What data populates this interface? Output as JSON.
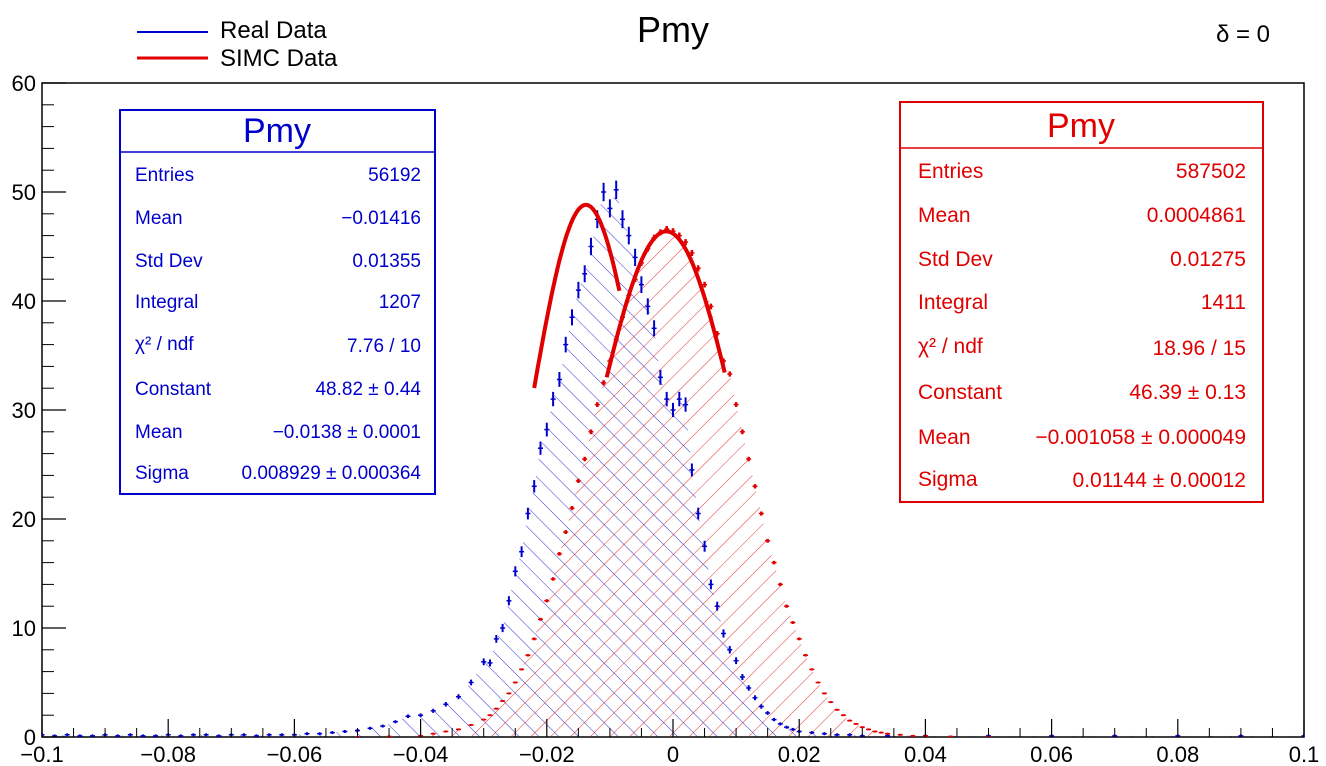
{
  "chart_data": {
    "type": "histogram",
    "title": "Pmy",
    "corner_label": "δ = 0",
    "xlim": [
      -0.1,
      0.1
    ],
    "ylim": [
      0,
      60
    ],
    "x_ticks": [
      "−0.1",
      "−0.08",
      "−0.06",
      "−0.04",
      "−0.02",
      "0",
      "0.02",
      "0.04",
      "0.06",
      "0.08",
      "0.1"
    ],
    "y_ticks": [
      "0",
      "10",
      "20",
      "30",
      "40",
      "50",
      "60"
    ],
    "x_tick_values": [
      -0.1,
      -0.08,
      -0.06,
      -0.04,
      -0.02,
      0,
      0.02,
      0.04,
      0.06,
      0.08,
      0.1
    ],
    "y_tick_values": [
      0,
      10,
      20,
      30,
      40,
      50,
      60
    ],
    "legend": [
      {
        "label": "Real Data",
        "color": "#0000cc"
      },
      {
        "label": "SIMC Data",
        "color": "#e00000"
      }
    ],
    "series": [
      {
        "name": "Real Data",
        "color": "#0000cc",
        "fit": {
          "constant": 48.82,
          "mean": -0.0138,
          "sigma": 0.008929,
          "range": [
            -0.022,
            -0.0085
          ]
        },
        "stats": {
          "title": "Pmy",
          "rows": [
            {
              "label": "Entries",
              "value": "56192"
            },
            {
              "label": "Mean",
              "value": "−0.01416"
            },
            {
              "label": "Std Dev",
              "value": "0.01355"
            },
            {
              "label": "Integral",
              "value": "1207"
            },
            {
              "label": "χ² / ndf",
              "value": "7.76 / 10"
            },
            {
              "label": "Constant",
              "value": "48.82 ± 0.44"
            },
            {
              "label": "Mean",
              "value": "−0.0138 ± 0.0001"
            },
            {
              "label": "Sigma",
              "value": "0.008929 ± 0.000364"
            }
          ]
        },
        "points": [
          [
            -0.1,
            0.2
          ],
          [
            -0.098,
            0.1
          ],
          [
            -0.096,
            0.2
          ],
          [
            -0.094,
            0.1
          ],
          [
            -0.092,
            0.1
          ],
          [
            -0.09,
            0.2
          ],
          [
            -0.088,
            0.1
          ],
          [
            -0.086,
            0.2
          ],
          [
            -0.084,
            0.1
          ],
          [
            -0.082,
            0.1
          ],
          [
            -0.08,
            0.2
          ],
          [
            -0.078,
            0.1
          ],
          [
            -0.076,
            0.2
          ],
          [
            -0.074,
            0.2
          ],
          [
            -0.072,
            0.1
          ],
          [
            -0.07,
            0.2
          ],
          [
            -0.068,
            0.2
          ],
          [
            -0.066,
            0.1
          ],
          [
            -0.064,
            0.2
          ],
          [
            -0.062,
            0.2
          ],
          [
            -0.06,
            0.2
          ],
          [
            -0.058,
            0.3
          ],
          [
            -0.056,
            0.3
          ],
          [
            -0.054,
            0.4
          ],
          [
            -0.052,
            0.5
          ],
          [
            -0.05,
            0.6
          ],
          [
            -0.048,
            0.8
          ],
          [
            -0.046,
            1.0
          ],
          [
            -0.044,
            1.4
          ],
          [
            -0.042,
            1.9
          ],
          [
            -0.04,
            2.0
          ],
          [
            -0.038,
            2.4
          ],
          [
            -0.036,
            3.0
          ],
          [
            -0.034,
            3.7
          ],
          [
            -0.032,
            5.0
          ],
          [
            -0.03,
            6.9
          ],
          [
            -0.029,
            6.8
          ],
          [
            -0.028,
            9.0
          ],
          [
            -0.027,
            10.0
          ],
          [
            -0.026,
            12.5
          ],
          [
            -0.025,
            15.2
          ],
          [
            -0.024,
            17.0
          ],
          [
            -0.023,
            20.5
          ],
          [
            -0.022,
            23.0
          ],
          [
            -0.021,
            26.5
          ],
          [
            -0.02,
            28.2
          ],
          [
            -0.019,
            31.0
          ],
          [
            -0.018,
            32.8
          ],
          [
            -0.017,
            36.0
          ],
          [
            -0.016,
            38.5
          ],
          [
            -0.015,
            41.0
          ],
          [
            -0.014,
            42.5
          ],
          [
            -0.013,
            45.0
          ],
          [
            -0.012,
            47.5
          ],
          [
            -0.011,
            50.0
          ],
          [
            -0.01,
            48.5
          ],
          [
            -0.009,
            50.2
          ],
          [
            -0.008,
            47.5
          ],
          [
            -0.007,
            46.0
          ],
          [
            -0.006,
            44.0
          ],
          [
            -0.005,
            41.5
          ],
          [
            -0.004,
            39.5
          ],
          [
            -0.003,
            37.5
          ],
          [
            -0.002,
            33.0
          ],
          [
            -0.001,
            31.0
          ],
          [
            0.0,
            30.0
          ],
          [
            0.001,
            31.0
          ],
          [
            0.002,
            30.5
          ],
          [
            0.003,
            24.5
          ],
          [
            0.004,
            20.5
          ],
          [
            0.005,
            17.5
          ],
          [
            0.006,
            14.0
          ],
          [
            0.007,
            12.0
          ],
          [
            0.008,
            9.5
          ],
          [
            0.009,
            8.0
          ],
          [
            0.01,
            7.0
          ],
          [
            0.011,
            5.5
          ],
          [
            0.012,
            4.5
          ],
          [
            0.013,
            3.6
          ],
          [
            0.014,
            2.8
          ],
          [
            0.015,
            2.2
          ],
          [
            0.016,
            1.6
          ],
          [
            0.017,
            1.2
          ],
          [
            0.018,
            0.9
          ],
          [
            0.019,
            0.7
          ],
          [
            0.02,
            0.5
          ],
          [
            0.022,
            0.4
          ],
          [
            0.024,
            0.3
          ],
          [
            0.026,
            0.2
          ],
          [
            0.028,
            0.2
          ],
          [
            0.03,
            0.1
          ],
          [
            0.034,
            0.1
          ],
          [
            0.04,
            0.1
          ],
          [
            0.05,
            0.1
          ],
          [
            0.06,
            0.1
          ],
          [
            0.07,
            0.1
          ],
          [
            0.08,
            0.1
          ],
          [
            0.09,
            0.1
          ],
          [
            0.1,
            0.1
          ]
        ]
      },
      {
        "name": "SIMC Data",
        "color": "#e00000",
        "fit": {
          "constant": 46.39,
          "mean": -0.001058,
          "sigma": 0.01144,
          "range": [
            -0.0105,
            0.0082
          ]
        },
        "stats": {
          "title": "Pmy",
          "rows": [
            {
              "label": "Entries",
              "value": "587502"
            },
            {
              "label": "Mean",
              "value": "0.0004861"
            },
            {
              "label": "Std Dev",
              "value": "0.01275"
            },
            {
              "label": "Integral",
              "value": "1411"
            },
            {
              "label": "χ² / ndf",
              "value": "18.96 / 15"
            },
            {
              "label": "Constant",
              "value": "46.39 ± 0.13"
            },
            {
              "label": "Mean",
              "value": "−0.001058 ± 0.000049"
            },
            {
              "label": "Sigma",
              "value": "0.01144 ± 0.00012"
            }
          ]
        },
        "points": [
          [
            -0.05,
            0.0
          ],
          [
            -0.045,
            0.05
          ],
          [
            -0.04,
            0.1
          ],
          [
            -0.038,
            0.3
          ],
          [
            -0.036,
            0.5
          ],
          [
            -0.034,
            0.7
          ],
          [
            -0.032,
            1.1
          ],
          [
            -0.03,
            1.6
          ],
          [
            -0.029,
            2.0
          ],
          [
            -0.028,
            2.6
          ],
          [
            -0.027,
            3.3
          ],
          [
            -0.026,
            4.0
          ],
          [
            -0.025,
            5.0
          ],
          [
            -0.024,
            6.2
          ],
          [
            -0.023,
            7.5
          ],
          [
            -0.022,
            9.0
          ],
          [
            -0.021,
            10.8
          ],
          [
            -0.02,
            12.5
          ],
          [
            -0.019,
            14.5
          ],
          [
            -0.018,
            16.8
          ],
          [
            -0.017,
            18.8
          ],
          [
            -0.016,
            21.0
          ],
          [
            -0.015,
            23.5
          ],
          [
            -0.014,
            25.5
          ],
          [
            -0.013,
            28.0
          ],
          [
            -0.012,
            30.5
          ],
          [
            -0.011,
            32.5
          ],
          [
            -0.01,
            34.5
          ],
          [
            -0.009,
            36.5
          ],
          [
            -0.008,
            38.5
          ],
          [
            -0.007,
            40.5
          ],
          [
            -0.006,
            42.0
          ],
          [
            -0.005,
            43.5
          ],
          [
            -0.004,
            44.8
          ],
          [
            -0.003,
            45.8
          ],
          [
            -0.002,
            46.3
          ],
          [
            -0.001,
            46.6
          ],
          [
            0.0,
            46.4
          ],
          [
            0.001,
            46.0
          ],
          [
            0.002,
            45.4
          ],
          [
            0.003,
            44.4
          ],
          [
            0.004,
            43.0
          ],
          [
            0.005,
            41.5
          ],
          [
            0.006,
            39.5
          ],
          [
            0.007,
            37.0
          ],
          [
            0.008,
            34.5
          ],
          [
            0.009,
            33.3
          ],
          [
            0.01,
            30.5
          ],
          [
            0.011,
            28.0
          ],
          [
            0.012,
            25.5
          ],
          [
            0.013,
            23.0
          ],
          [
            0.014,
            20.5
          ],
          [
            0.015,
            18.0
          ],
          [
            0.016,
            16.0
          ],
          [
            0.017,
            14.0
          ],
          [
            0.018,
            12.0
          ],
          [
            0.019,
            10.5
          ],
          [
            0.02,
            9.0
          ],
          [
            0.021,
            7.5
          ],
          [
            0.022,
            6.2
          ],
          [
            0.023,
            5.0
          ],
          [
            0.024,
            4.0
          ],
          [
            0.025,
            3.2
          ],
          [
            0.026,
            2.5
          ],
          [
            0.027,
            2.0
          ],
          [
            0.028,
            1.5
          ],
          [
            0.029,
            1.2
          ],
          [
            0.03,
            0.9
          ],
          [
            0.031,
            0.7
          ],
          [
            0.032,
            0.5
          ],
          [
            0.033,
            0.4
          ],
          [
            0.034,
            0.3
          ],
          [
            0.036,
            0.2
          ],
          [
            0.038,
            0.1
          ],
          [
            0.04,
            0.1
          ],
          [
            0.044,
            0.05
          ],
          [
            0.05,
            0.0
          ]
        ]
      }
    ]
  }
}
